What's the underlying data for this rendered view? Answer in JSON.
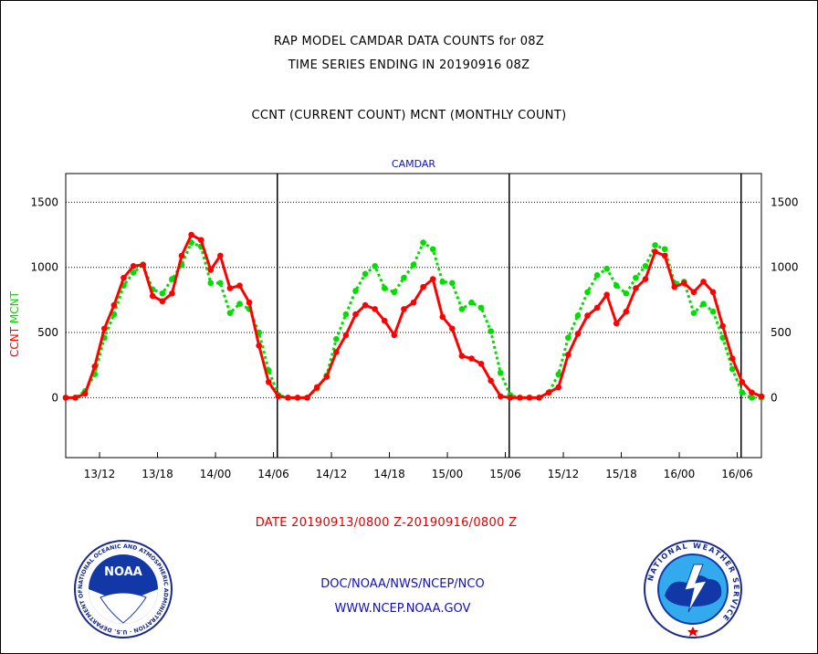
{
  "titles": {
    "line1": "RAP MODEL CAMDAR DATA COUNTS for 08Z",
    "line2": "TIME SERIES ENDING IN 20190916 08Z",
    "line3": "CCNT (CURRENT COUNT) MCNT (MONTHLY COUNT)"
  },
  "date_range": "DATE 20190913/0800 Z-20190916/0800 Z",
  "footer": {
    "line1": "DOC/NOAA/NWS/NCEP/NCO",
    "line2": "WWW.NCEP.NOAA.GOV"
  },
  "logos": {
    "noaa_label": "NOAA",
    "noaa_ring": "NATIONAL OCEANIC AND ATMOSPHERIC ADMINISTRATION · U.S. DEPARTMENT OF COMMERCE ·",
    "nws_ring": "NATIONAL WEATHER SERVICE"
  },
  "chart_data": {
    "type": "line",
    "title": "CAMDAR",
    "ylabel_left": [
      "CCNT",
      "MCNT"
    ],
    "ylabel_colors": [
      "#ff0000",
      "#00dd00"
    ],
    "ylim": [
      -460,
      1720
    ],
    "yticks": [
      0,
      500,
      1000,
      1500
    ],
    "xlim": [
      0,
      72
    ],
    "xticks": [
      {
        "x": 3.5,
        "label": "13/12"
      },
      {
        "x": 9.5,
        "label": "13/18"
      },
      {
        "x": 15.5,
        "label": "14/00"
      },
      {
        "x": 21.5,
        "label": "14/06"
      },
      {
        "x": 27.5,
        "label": "14/12"
      },
      {
        "x": 33.5,
        "label": "14/18"
      },
      {
        "x": 39.5,
        "label": "15/00"
      },
      {
        "x": 45.5,
        "label": "15/06"
      },
      {
        "x": 51.5,
        "label": "15/12"
      },
      {
        "x": 57.5,
        "label": "15/18"
      },
      {
        "x": 63.5,
        "label": "16/00"
      },
      {
        "x": 69.5,
        "label": "16/06"
      }
    ],
    "day_boundaries": [
      21.9,
      45.9,
      69.9
    ],
    "grid": true,
    "series": [
      {
        "name": "CCNT",
        "color": "#ff0000",
        "style": "solid",
        "values": [
          0,
          0,
          30,
          240,
          530,
          710,
          920,
          1010,
          1020,
          780,
          740,
          800,
          1090,
          1250,
          1210,
          980,
          1090,
          840,
          860,
          730,
          400,
          120,
          10,
          0,
          0,
          0,
          80,
          160,
          350,
          480,
          640,
          710,
          680,
          590,
          480,
          680,
          730,
          850,
          910,
          620,
          530,
          320,
          300,
          260,
          130,
          10,
          0,
          0,
          0,
          0,
          40,
          80,
          330,
          490,
          630,
          690,
          790,
          570,
          660,
          840,
          910,
          1120,
          1090,
          850,
          880,
          810,
          890,
          810,
          550,
          300,
          120,
          40,
          10
        ]
      },
      {
        "name": "MCNT",
        "color": "#00dd00",
        "style": "dotted",
        "values": [
          0,
          0,
          50,
          180,
          460,
          640,
          860,
          960,
          1020,
          830,
          800,
          910,
          1020,
          1190,
          1160,
          880,
          880,
          650,
          720,
          680,
          500,
          210,
          20,
          0,
          0,
          0,
          70,
          170,
          450,
          640,
          820,
          950,
          1010,
          840,
          810,
          920,
          1020,
          1190,
          1140,
          890,
          880,
          680,
          730,
          690,
          510,
          190,
          20,
          0,
          0,
          0,
          40,
          180,
          460,
          630,
          810,
          940,
          990,
          860,
          800,
          920,
          1010,
          1170,
          1140,
          880,
          890,
          650,
          720,
          660,
          460,
          220,
          40,
          0,
          0
        ]
      }
    ]
  }
}
